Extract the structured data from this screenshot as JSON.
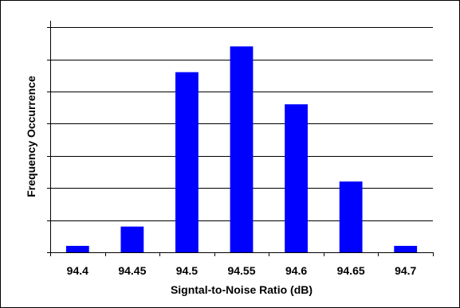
{
  "chart_data": {
    "type": "bar",
    "title": "",
    "xlabel": "Signtal-to-Noise Ratio (dB)",
    "ylabel": "Frequency Occurrence",
    "categories": [
      "94.4",
      "94.45",
      "94.5",
      "94.55",
      "94.6",
      "94.65",
      "94.7"
    ],
    "values": [
      2,
      8,
      56,
      64,
      46,
      22,
      2
    ],
    "ylim": [
      0,
      72
    ],
    "y_tick_step": 10,
    "y_tick_labels_shown": false,
    "grid": "horizontal",
    "legend": "none",
    "colors": {
      "bar": "#0000FF",
      "grid": "#000000",
      "axis": "#000000"
    }
  }
}
